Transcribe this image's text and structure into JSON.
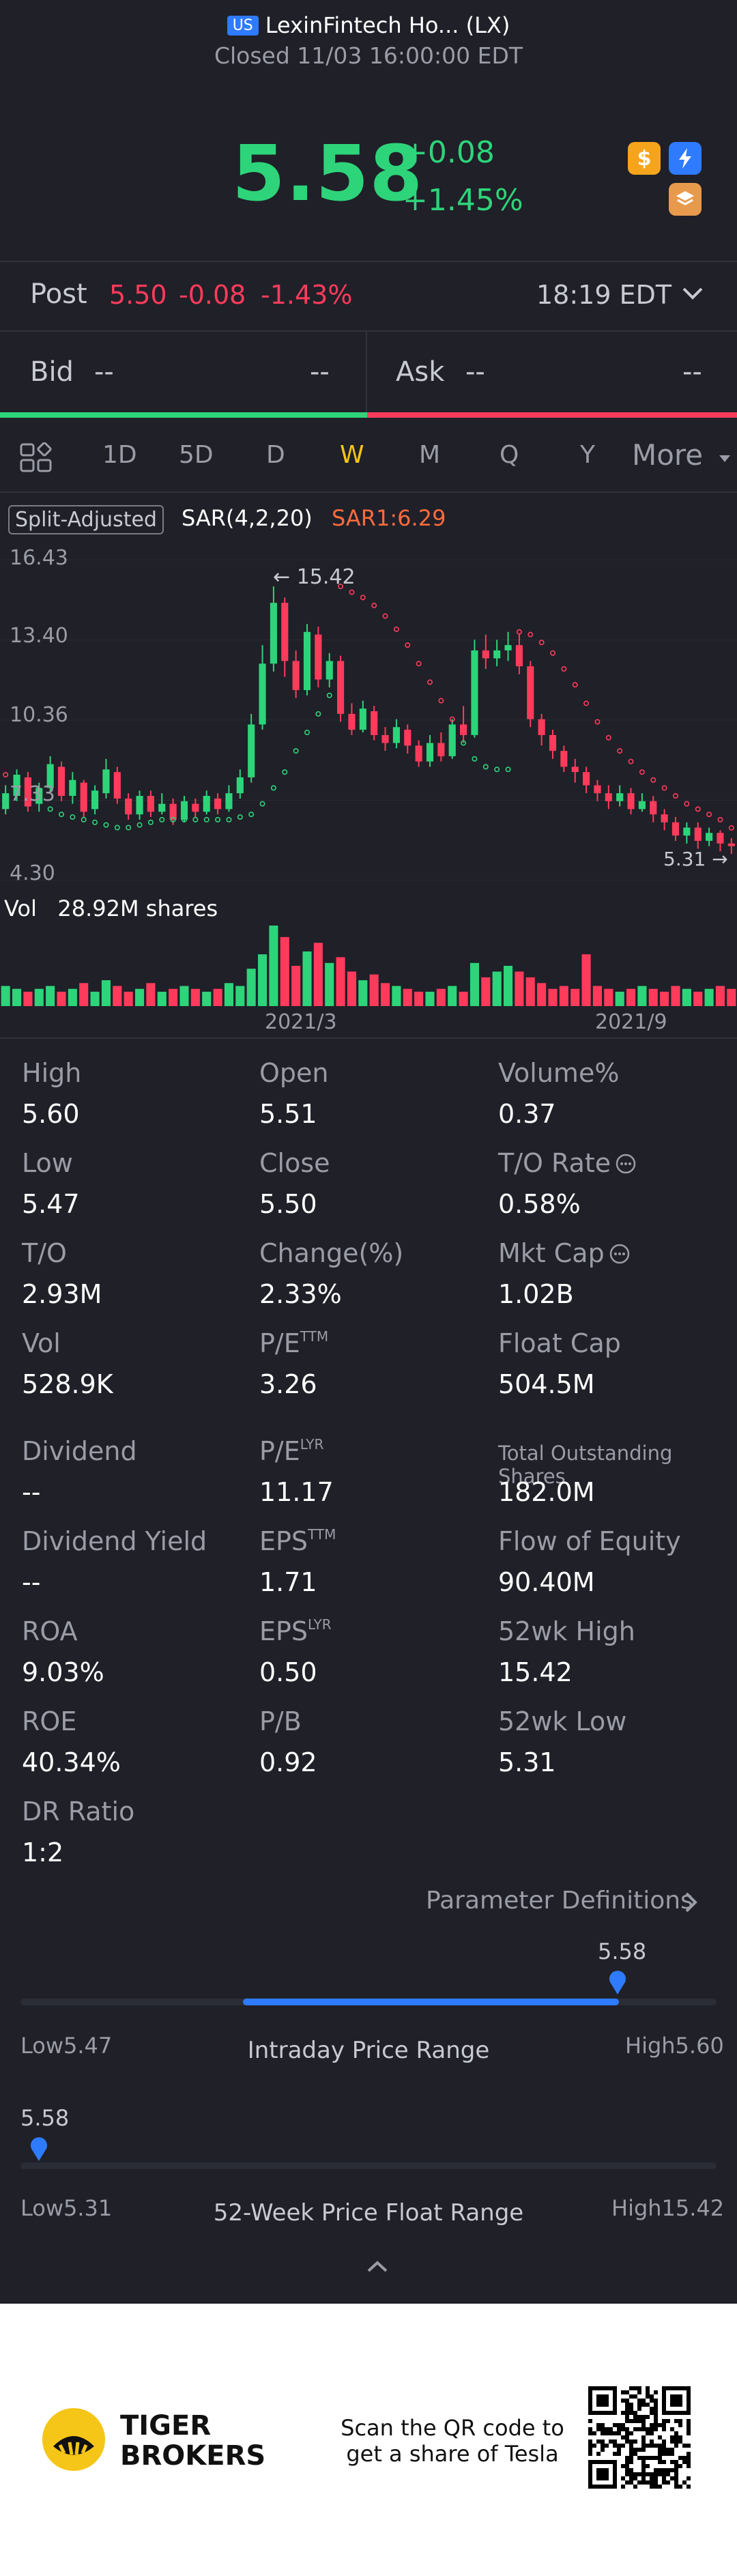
{
  "header": {
    "market_badge": "US",
    "title": "LexinFintech Ho... (LX)",
    "status": "Closed 11/03 16:00:00 EDT"
  },
  "quote": {
    "price": "5.58",
    "change": "+0.08",
    "change_pct": "+1.45%",
    "up_color": "#2ed47a",
    "down_color": "#ff3b5c"
  },
  "badges": [
    {
      "icon": "dollar-icon",
      "color": "#f7a41d"
    },
    {
      "icon": "lightning-icon",
      "color": "#2f7bff"
    },
    {
      "icon": "layers-icon",
      "color": "#e89a4c"
    }
  ],
  "post": {
    "label": "Post",
    "price": "5.50",
    "change": "-0.08",
    "change_pct": "-1.43%",
    "time": "18:19 EDT"
  },
  "orderbook": {
    "bid_label": "Bid",
    "bid_value": "--",
    "bid_value2": "--",
    "ask_label": "Ask",
    "ask_value": "--",
    "ask_value2": "--"
  },
  "tabs": [
    {
      "label": "1D"
    },
    {
      "label": "5D"
    },
    {
      "label": "D"
    },
    {
      "label": "W",
      "active": true
    },
    {
      "label": "M"
    },
    {
      "label": "Q"
    },
    {
      "label": "Y"
    },
    {
      "label": "More"
    }
  ],
  "chart_header": {
    "split_tag": "Split-Adjusted",
    "sar_params": "SAR(4,2,20)",
    "sar_value": "SAR1:6.29"
  },
  "chart_data": {
    "type": "candlestick",
    "y_ticks": [
      "16.43",
      "13.40",
      "10.36",
      "7.33",
      "4.30"
    ],
    "ylim": [
      4.3,
      16.43
    ],
    "x_ticks": [
      "2021/3",
      "2021/9"
    ],
    "high_marker": "15.42",
    "low_marker": "5.31",
    "volume_label": "Vol",
    "volume_value": "28.92M shares",
    "candles": [
      [
        7.0,
        7.6,
        6.8,
        7.9
      ],
      [
        7.5,
        8.3,
        7.3,
        8.5
      ],
      [
        8.2,
        7.1,
        6.9,
        8.4
      ],
      [
        7.2,
        7.8,
        6.9,
        8.0
      ],
      [
        7.8,
        8.7,
        7.6,
        9.0
      ],
      [
        8.6,
        7.5,
        7.3,
        8.8
      ],
      [
        7.5,
        8.1,
        7.2,
        8.4
      ],
      [
        8.0,
        6.9,
        6.7,
        8.1
      ],
      [
        7.0,
        7.7,
        6.8,
        7.9
      ],
      [
        7.6,
        8.5,
        7.4,
        8.9
      ],
      [
        8.4,
        7.4,
        7.2,
        8.6
      ],
      [
        7.4,
        6.8,
        6.6,
        7.6
      ],
      [
        6.8,
        7.5,
        6.6,
        7.7
      ],
      [
        7.5,
        6.9,
        6.7,
        7.7
      ],
      [
        6.9,
        7.2,
        6.8,
        7.6
      ],
      [
        7.2,
        6.6,
        6.4,
        7.4
      ],
      [
        6.6,
        7.3,
        6.5,
        7.5
      ],
      [
        7.2,
        6.9,
        6.7,
        7.4
      ],
      [
        6.9,
        7.5,
        6.8,
        7.7
      ],
      [
        7.4,
        7.0,
        6.8,
        7.6
      ],
      [
        7.0,
        7.6,
        6.9,
        7.9
      ],
      [
        7.6,
        8.2,
        7.4,
        8.5
      ],
      [
        8.2,
        10.2,
        8.0,
        10.6
      ],
      [
        10.2,
        12.5,
        10.0,
        13.2
      ],
      [
        12.5,
        14.8,
        12.2,
        15.42
      ],
      [
        14.8,
        12.6,
        12.0,
        15.0
      ],
      [
        12.6,
        11.5,
        11.2,
        13.0
      ],
      [
        11.5,
        13.7,
        11.3,
        14.0
      ],
      [
        13.6,
        11.9,
        11.6,
        13.9
      ],
      [
        11.9,
        12.6,
        11.6,
        12.9
      ],
      [
        12.6,
        10.6,
        10.3,
        12.8
      ],
      [
        10.6,
        10.0,
        9.8,
        11.0
      ],
      [
        10.0,
        10.8,
        9.9,
        11.1
      ],
      [
        10.7,
        9.8,
        9.6,
        10.9
      ],
      [
        9.8,
        9.5,
        9.2,
        10.1
      ],
      [
        9.5,
        10.1,
        9.3,
        10.4
      ],
      [
        10.0,
        9.4,
        9.1,
        10.2
      ],
      [
        9.4,
        8.8,
        8.6,
        9.6
      ],
      [
        8.8,
        9.5,
        8.6,
        9.8
      ],
      [
        9.5,
        9.0,
        8.8,
        9.9
      ],
      [
        9.0,
        10.2,
        8.9,
        10.4
      ],
      [
        10.2,
        9.8,
        9.5,
        10.9
      ],
      [
        9.8,
        13.0,
        9.7,
        13.4
      ],
      [
        13.0,
        12.7,
        12.3,
        13.6
      ],
      [
        12.7,
        13.0,
        12.4,
        13.4
      ],
      [
        13.0,
        13.2,
        12.6,
        13.7
      ],
      [
        13.2,
        12.4,
        12.1,
        13.6
      ],
      [
        12.4,
        10.4,
        10.1,
        12.6
      ],
      [
        10.4,
        9.8,
        9.4,
        10.6
      ],
      [
        9.8,
        9.2,
        8.9,
        10.0
      ],
      [
        9.2,
        8.6,
        8.4,
        9.4
      ],
      [
        8.6,
        8.4,
        8.0,
        8.9
      ],
      [
        8.4,
        7.9,
        7.6,
        8.6
      ],
      [
        7.9,
        7.6,
        7.3,
        8.1
      ],
      [
        7.6,
        7.3,
        7.0,
        7.9
      ],
      [
        7.3,
        7.6,
        7.1,
        7.9
      ],
      [
        7.6,
        7.0,
        6.8,
        7.8
      ],
      [
        7.0,
        7.3,
        6.9,
        7.6
      ],
      [
        7.3,
        6.8,
        6.5,
        7.5
      ],
      [
        6.8,
        6.5,
        6.2,
        7.0
      ],
      [
        6.5,
        6.0,
        5.8,
        6.7
      ],
      [
        6.0,
        6.3,
        5.7,
        6.5
      ],
      [
        6.3,
        5.8,
        5.5,
        6.5
      ],
      [
        5.8,
        6.1,
        5.6,
        6.3
      ],
      [
        6.1,
        5.7,
        5.4,
        6.2
      ],
      [
        5.7,
        5.6,
        5.31,
        5.9
      ]
    ],
    "sar": [
      8.3,
      8.2,
      8.0,
      7.4,
      7.0,
      6.8,
      6.7,
      6.6,
      6.5,
      6.4,
      6.3,
      6.3,
      6.4,
      6.5,
      6.6,
      6.6,
      6.6,
      6.6,
      6.6,
      6.6,
      6.6,
      6.7,
      6.8,
      7.2,
      7.8,
      8.4,
      9.2,
      9.9,
      10.6,
      11.3,
      15.42,
      15.2,
      15.0,
      14.7,
      14.3,
      13.8,
      13.2,
      12.5,
      11.8,
      11.1,
      10.4,
      9.5,
      8.9,
      8.6,
      8.5,
      8.5,
      13.7,
      13.6,
      13.3,
      12.9,
      12.3,
      11.7,
      11.0,
      10.3,
      9.7,
      9.2,
      8.8,
      8.4,
      8.1,
      7.8,
      7.5,
      7.2,
      7.0,
      6.8,
      6.6,
      6.29
    ],
    "volumes": [
      7,
      6,
      5,
      6,
      7,
      5,
      6,
      8,
      5,
      9,
      7,
      5,
      6,
      8,
      5,
      6,
      7,
      6,
      5,
      6,
      8,
      7,
      13,
      18,
      28,
      24,
      14,
      19,
      22,
      15,
      17,
      12,
      9,
      11,
      8,
      7,
      6,
      5,
      5,
      6,
      7,
      5,
      15,
      10,
      12,
      14,
      12,
      10,
      8,
      6,
      7,
      6,
      18,
      7,
      6,
      5,
      6,
      7,
      6,
      5,
      7,
      6,
      5,
      6,
      7,
      6
    ]
  },
  "stats": [
    {
      "label": "High",
      "value": "5.60"
    },
    {
      "label": "Open",
      "value": "5.51"
    },
    {
      "label": "Volume%",
      "value": "0.37"
    },
    {
      "label": "Low",
      "value": "5.47"
    },
    {
      "label": "Close",
      "value": "5.50"
    },
    {
      "label": "T/O Rate",
      "value": "0.58%",
      "info": true
    },
    {
      "label": "T/O",
      "value": "2.93M"
    },
    {
      "label": "Change(%)",
      "value": "2.33%"
    },
    {
      "label": "Mkt Cap",
      "value": "1.02B",
      "info": true
    },
    {
      "label": "Vol",
      "value": "528.9K"
    },
    {
      "label": "P/E",
      "sup": "TTM",
      "value": "3.26"
    },
    {
      "label": "Float Cap",
      "value": "504.5M"
    },
    {
      "label": "Dividend",
      "value": "--"
    },
    {
      "label": "P/E",
      "sup": "LYR",
      "value": "11.17"
    },
    {
      "label": "Total Outstanding Shares",
      "value": "182.0M",
      "small": true
    },
    {
      "label": "Dividend Yield",
      "value": "--"
    },
    {
      "label": "EPS",
      "sup": "TTM",
      "value": "1.71"
    },
    {
      "label": "Flow of Equity",
      "value": "90.40M"
    },
    {
      "label": "ROA",
      "value": "9.03%"
    },
    {
      "label": "EPS",
      "sup": "LYR",
      "value": "0.50"
    },
    {
      "label": "52wk High",
      "value": "15.42"
    },
    {
      "label": "ROE",
      "value": "40.34%"
    },
    {
      "label": "P/B",
      "value": "0.92"
    },
    {
      "label": "52wk Low",
      "value": "5.31"
    },
    {
      "label": "DR Ratio",
      "value": "1:2"
    }
  ],
  "param_definitions": "Parameter Definitions",
  "intraday_range": {
    "current": "5.58",
    "low_label": "Low",
    "low": "5.47",
    "high_label": "High",
    "high": "5.60",
    "caption": "Intraday Price Range",
    "fill_start": 0.32,
    "fill_end": 0.86
  },
  "week52_range": {
    "current": "5.58",
    "low_label": "Low",
    "low": "5.31",
    "high_label": "High",
    "high": "15.42",
    "caption": "52-Week Price Float Range",
    "position": 0.027
  },
  "footer": {
    "brand_line1": "TIGER",
    "brand_line2": "BROKERS",
    "scan_text": "Scan the QR code to get a share of Tesla"
  }
}
